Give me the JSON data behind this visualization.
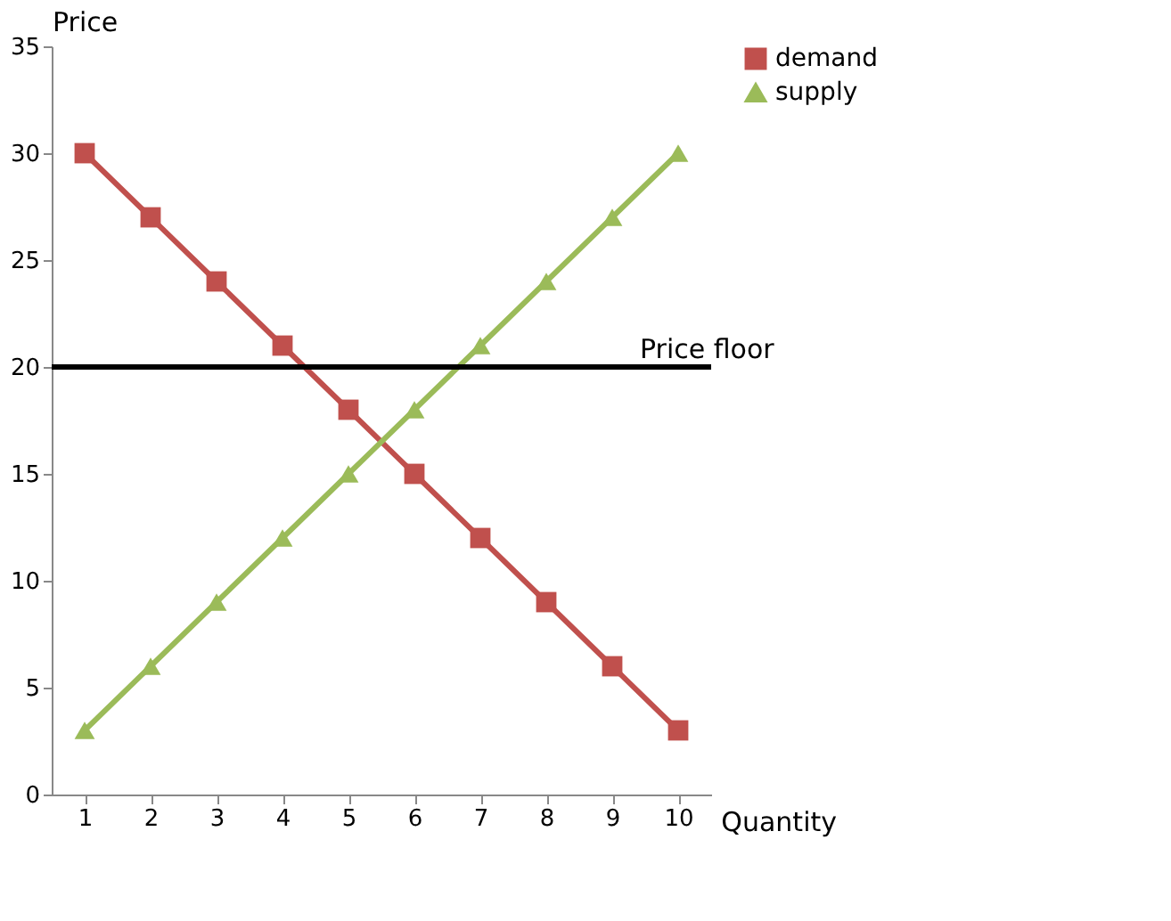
{
  "chart_data": {
    "type": "line",
    "xlabel": "Quantity",
    "ylabel": "Price",
    "categories": [
      "1",
      "2",
      "3",
      "4",
      "5",
      "6",
      "7",
      "8",
      "9",
      "10"
    ],
    "series": [
      {
        "name": "demand",
        "color": "#c0504d",
        "marker": "square",
        "values": [
          30,
          27,
          24,
          21,
          18,
          15,
          12,
          9,
          6,
          3
        ]
      },
      {
        "name": "supply",
        "color": "#9bbb59",
        "marker": "triangle",
        "values": [
          3,
          6,
          9,
          12,
          15,
          18,
          21,
          24,
          27,
          30
        ]
      }
    ],
    "ylim": [
      0,
      35
    ],
    "yticks": [
      0,
      5,
      10,
      15,
      20,
      25,
      30,
      35
    ],
    "ref_lines": [
      {
        "axis": "y",
        "value": 20,
        "label": "Price floor",
        "color": "#000000"
      }
    ],
    "grid": false,
    "legend": "right",
    "line_style": "solid"
  }
}
